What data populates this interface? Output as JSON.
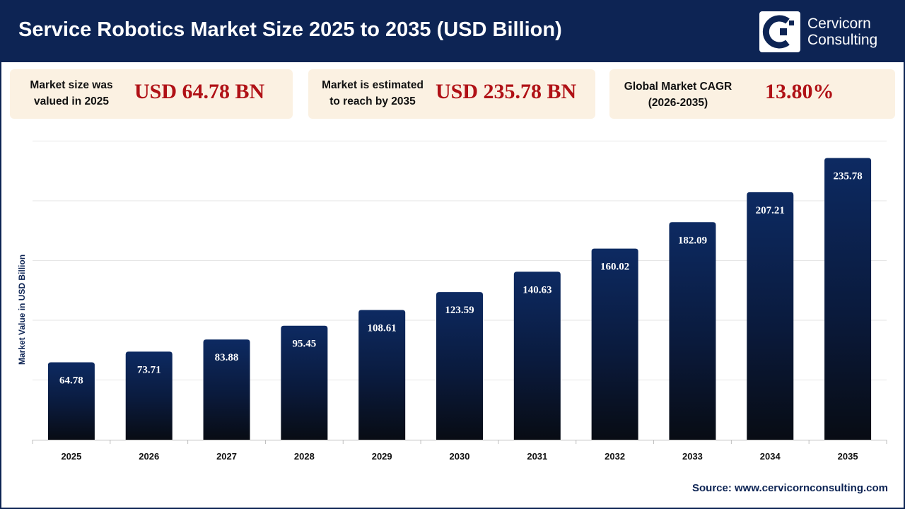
{
  "header": {
    "title": "Service Robotics Market Size 2025 to 2035 (USD Billion)",
    "logo": {
      "line1": "Cervicorn",
      "line2": "Consulting",
      "icon": "cervicorn-logo-icon"
    }
  },
  "kpis": [
    {
      "label_line1": "Market size was",
      "label_line2": "valued in 2025",
      "value": "USD 64.78 BN"
    },
    {
      "label_line1": "Market is estimated",
      "label_line2": "to reach by 2035",
      "value": "USD 235.78 BN"
    },
    {
      "label_line1": "Global Market CAGR",
      "label_line2": "(2026-2035)",
      "value": "13.80%"
    }
  ],
  "chart_data": {
    "type": "bar",
    "title": "Service Robotics Market Size 2025 to 2035 (USD Billion)",
    "ylabel": "Market Value in USD Billion",
    "xlabel": "",
    "categories": [
      "2025",
      "2026",
      "2027",
      "2028",
      "2029",
      "2030",
      "2031",
      "2032",
      "2033",
      "2034",
      "2035"
    ],
    "values": [
      64.78,
      73.71,
      83.88,
      95.45,
      108.61,
      123.59,
      140.63,
      160.02,
      182.09,
      207.21,
      235.78
    ],
    "data_labels": [
      "64.78",
      "73.71",
      "83.88",
      "95.45",
      "108.61",
      "123.59",
      "140.63",
      "160.02",
      "182.09",
      "207.21",
      "235.78"
    ],
    "ylim": [
      0,
      250
    ],
    "grid": true,
    "legend": "none",
    "bar_color_top": "#0d2a62",
    "bar_color_bottom": "#080c14"
  },
  "source": "Source: www.cervicornconsulting.com",
  "colors": {
    "navy": "#0d2454",
    "accent_red": "#b01116",
    "kpi_bg": "#fbf1e2"
  }
}
